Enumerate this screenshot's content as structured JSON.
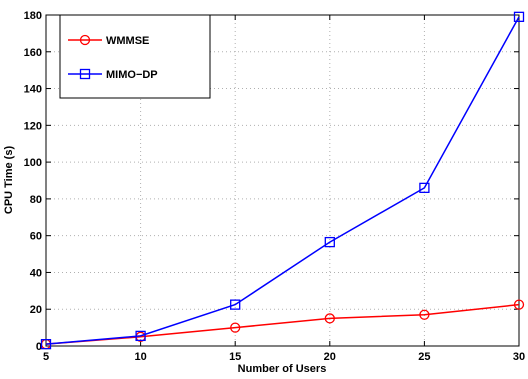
{
  "chart_data": {
    "type": "line",
    "title": "",
    "xlabel": "Number of Users",
    "ylabel": "CPU Time (s)",
    "x": [
      5,
      10,
      15,
      20,
      25,
      30
    ],
    "xlim": [
      5,
      30
    ],
    "ylim": [
      0,
      180
    ],
    "xticks": [
      "5",
      "10",
      "15",
      "20",
      "25",
      "30"
    ],
    "yticks": [
      "0",
      "20",
      "40",
      "60",
      "80",
      "100",
      "120",
      "140",
      "160",
      "180"
    ],
    "grid": true,
    "legend_position": "top-left",
    "series": [
      {
        "name": "WMMSE",
        "color": "#ff0000",
        "marker": "circle",
        "values": [
          1,
          5,
          10,
          15,
          17,
          22.5
        ]
      },
      {
        "name": "MIMO−DP",
        "color": "#0000ff",
        "marker": "square",
        "values": [
          1,
          5.5,
          22.5,
          56.5,
          86,
          179
        ]
      }
    ]
  }
}
